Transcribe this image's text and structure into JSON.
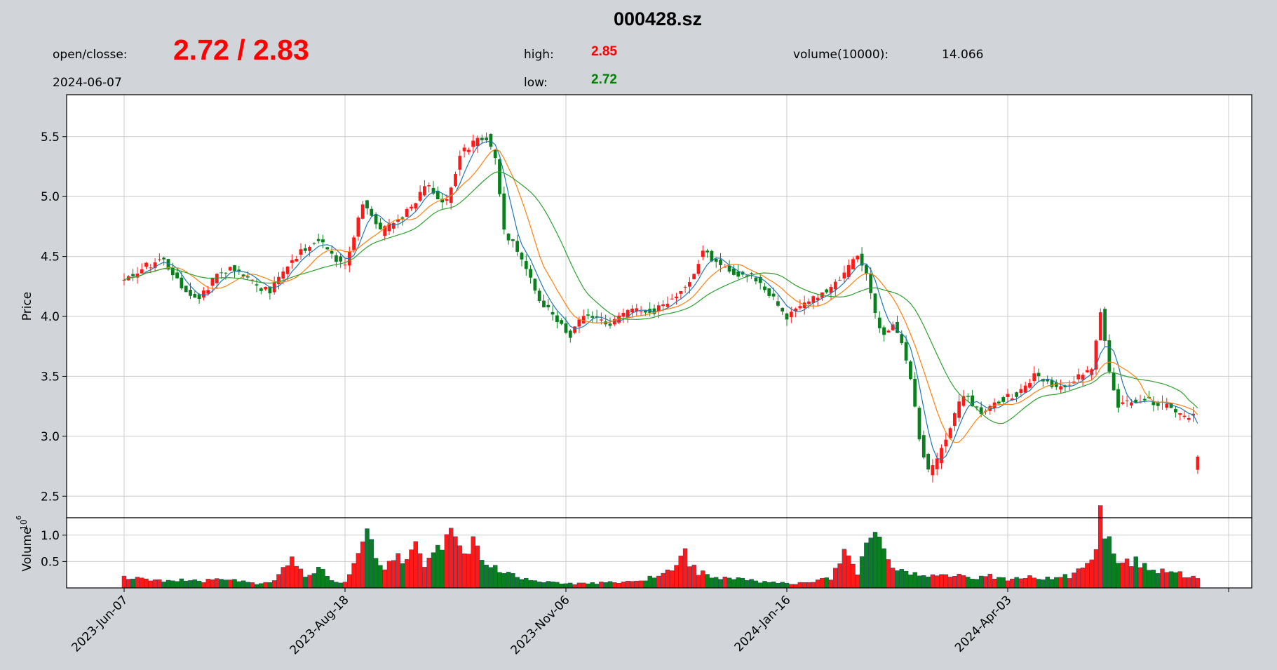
{
  "header": {
    "ticker": "000428.sz",
    "open_close_label": "open/closse:",
    "open_close_value": "2.72 / 2.83",
    "date": "2024-06-07",
    "high_label": "high:",
    "high_value": "2.85",
    "low_label": "low:",
    "low_value": "2.72",
    "volume_label": "volume(10000):",
    "volume_value": "14.066"
  },
  "colors": {
    "background": "#d1d5da",
    "up": "#ff1a1a",
    "down": "#0a7f1e",
    "ma_short": "#1f77b4",
    "ma_mid": "#ff7f0e",
    "ma_long": "#2ca02c",
    "grid": "#cccccc",
    "open_close_text": "#ff0000",
    "high_text": "#ff0000",
    "low_text": "#008000"
  },
  "chart_data": {
    "type": "candlestick",
    "price_ylabel": "Price",
    "volume_ylabel": "Volume",
    "volume_exponent": "6",
    "price_ylim": [
      2.32,
      5.85
    ],
    "price_yticks": [
      "2.5",
      "3.0",
      "3.5",
      "4.0",
      "4.5",
      "5.0",
      "5.5"
    ],
    "volume_ylim": [
      0,
      1.33
    ],
    "volume_yticks": [
      "0.5",
      "1.0"
    ],
    "x_tick_labels": [
      "2023-Jun-07",
      "2023-Aug-18",
      "2023-Nov-06",
      "2024-Jan-16",
      "2024-Apr-03"
    ],
    "x_tick_bar_index": [
      0,
      50,
      100,
      150,
      200
    ],
    "grid": true,
    "moving_averages": [
      "short",
      "mid",
      "long"
    ],
    "n_bars": 244,
    "price_anchors": [
      [
        0,
        4.3
      ],
      [
        5,
        4.42
      ],
      [
        9,
        4.48
      ],
      [
        12,
        4.3
      ],
      [
        15,
        4.18
      ],
      [
        17,
        4.15
      ],
      [
        21,
        4.35
      ],
      [
        24,
        4.4
      ],
      [
        27,
        4.35
      ],
      [
        30,
        4.25
      ],
      [
        33,
        4.22
      ],
      [
        36,
        4.38
      ],
      [
        40,
        4.55
      ],
      [
        44,
        4.65
      ],
      [
        48,
        4.48
      ],
      [
        50,
        4.42
      ],
      [
        54,
        4.95
      ],
      [
        58,
        4.7
      ],
      [
        62,
        4.8
      ],
      [
        66,
        4.95
      ],
      [
        68,
        5.1
      ],
      [
        71,
        5.0
      ],
      [
        73,
        4.95
      ],
      [
        76,
        5.35
      ],
      [
        79,
        5.45
      ],
      [
        82,
        5.5
      ],
      [
        84,
        5.3
      ],
      [
        86,
        4.7
      ],
      [
        89,
        4.55
      ],
      [
        91,
        4.4
      ],
      [
        94,
        4.15
      ],
      [
        98,
        3.95
      ],
      [
        101,
        3.85
      ],
      [
        104,
        4.0
      ],
      [
        110,
        3.95
      ],
      [
        115,
        4.05
      ],
      [
        120,
        4.05
      ],
      [
        124,
        4.15
      ],
      [
        128,
        4.3
      ],
      [
        131,
        4.55
      ],
      [
        134,
        4.45
      ],
      [
        138,
        4.35
      ],
      [
        142,
        4.35
      ],
      [
        146,
        4.2
      ],
      [
        150,
        4.0
      ],
      [
        154,
        4.1
      ],
      [
        158,
        4.2
      ],
      [
        162,
        4.3
      ],
      [
        166,
        4.5
      ],
      [
        168,
        4.35
      ],
      [
        170,
        4.0
      ],
      [
        172,
        3.85
      ],
      [
        174,
        3.95
      ],
      [
        176,
        3.8
      ],
      [
        178,
        3.5
      ],
      [
        180,
        3.0
      ],
      [
        182,
        2.7
      ],
      [
        184,
        2.8
      ],
      [
        186,
        3.0
      ],
      [
        190,
        3.35
      ],
      [
        194,
        3.2
      ],
      [
        198,
        3.3
      ],
      [
        202,
        3.35
      ],
      [
        206,
        3.5
      ],
      [
        209,
        3.45
      ],
      [
        212,
        3.4
      ],
      [
        216,
        3.5
      ],
      [
        219,
        3.55
      ],
      [
        221,
        4.05
      ],
      [
        223,
        3.55
      ],
      [
        225,
        3.25
      ],
      [
        228,
        3.3
      ],
      [
        232,
        3.3
      ],
      [
        236,
        3.25
      ],
      [
        240,
        3.15
      ],
      [
        244,
        3.25
      ],
      [
        248,
        3.25
      ],
      [
        252,
        3.15
      ],
      [
        256,
        3.05
      ],
      [
        259,
        2.95
      ],
      [
        262,
        2.72
      ],
      [
        263,
        2.83
      ]
    ],
    "volume_anchors": [
      [
        0,
        0.2
      ],
      [
        10,
        0.12
      ],
      [
        14,
        0.16
      ],
      [
        18,
        0.12
      ],
      [
        22,
        0.18
      ],
      [
        26,
        0.12
      ],
      [
        30,
        0.08
      ],
      [
        34,
        0.15
      ],
      [
        38,
        0.5
      ],
      [
        41,
        0.25
      ],
      [
        44,
        0.42
      ],
      [
        47,
        0.15
      ],
      [
        50,
        0.1
      ],
      [
        52,
        0.55
      ],
      [
        55,
        0.95
      ],
      [
        58,
        0.4
      ],
      [
        61,
        0.5
      ],
      [
        64,
        0.6
      ],
      [
        66,
        1.0
      ],
      [
        68,
        0.45
      ],
      [
        71,
        0.7
      ],
      [
        73,
        1.1
      ],
      [
        76,
        0.75
      ],
      [
        79,
        0.85
      ],
      [
        82,
        0.4
      ],
      [
        86,
        0.3
      ],
      [
        90,
        0.18
      ],
      [
        95,
        0.12
      ],
      [
        100,
        0.08
      ],
      [
        105,
        0.08
      ],
      [
        110,
        0.1
      ],
      [
        115,
        0.12
      ],
      [
        120,
        0.2
      ],
      [
        124,
        0.35
      ],
      [
        127,
        0.62
      ],
      [
        130,
        0.3
      ],
      [
        135,
        0.2
      ],
      [
        140,
        0.15
      ],
      [
        145,
        0.12
      ],
      [
        150,
        0.08
      ],
      [
        155,
        0.1
      ],
      [
        160,
        0.2
      ],
      [
        163,
        0.6
      ],
      [
        166,
        0.3
      ],
      [
        168,
        0.7
      ],
      [
        170,
        1.05
      ],
      [
        172,
        0.7
      ],
      [
        175,
        0.4
      ],
      [
        180,
        0.25
      ],
      [
        185,
        0.3
      ],
      [
        190,
        0.2
      ],
      [
        195,
        0.22
      ],
      [
        200,
        0.18
      ],
      [
        205,
        0.2
      ],
      [
        210,
        0.18
      ],
      [
        215,
        0.25
      ],
      [
        218,
        0.5
      ],
      [
        220,
        0.9
      ],
      [
        221,
        1.3
      ],
      [
        223,
        0.8
      ],
      [
        226,
        0.5
      ],
      [
        229,
        0.55
      ],
      [
        232,
        0.3
      ],
      [
        236,
        0.35
      ],
      [
        240,
        0.25
      ],
      [
        245,
        0.2
      ],
      [
        250,
        0.1
      ],
      [
        255,
        0.08
      ],
      [
        260,
        0.12
      ],
      [
        263,
        0.14
      ]
    ]
  }
}
